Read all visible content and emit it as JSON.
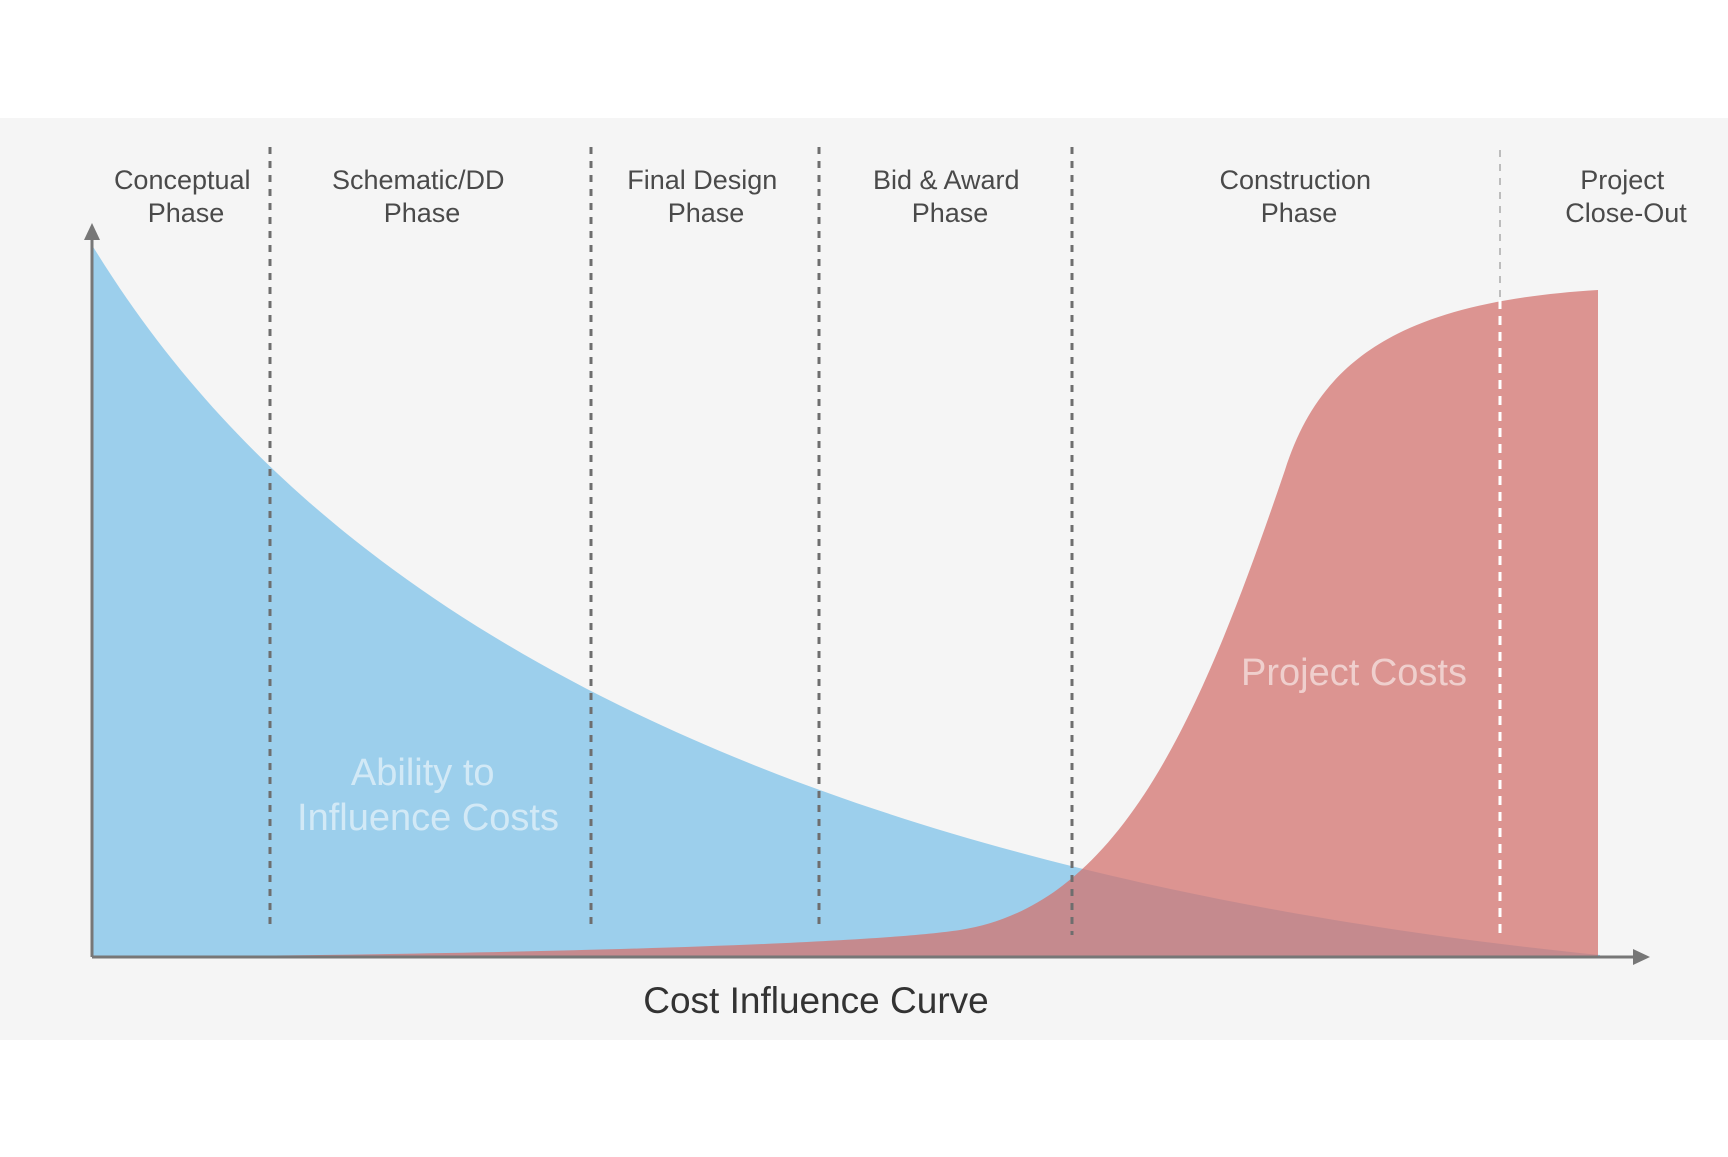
{
  "diagram": {
    "caption": "Cost Influence Curve",
    "phases": [
      {
        "line1": "Conceptual",
        "line2": "Phase"
      },
      {
        "line1": "Schematic/DD",
        "line2": "Phase"
      },
      {
        "line1": "Final Design",
        "line2": "Phase"
      },
      {
        "line1": "Bid & Award",
        "line2": "Phase"
      },
      {
        "line1": "Construction",
        "line2": "Phase"
      },
      {
        "line1": "Project",
        "line2": "Close-Out"
      }
    ],
    "areas": {
      "influence": {
        "line1": "Ability to",
        "line2": "Influence Costs"
      },
      "costs": {
        "label": "Project Costs"
      }
    },
    "colors": {
      "panel": "#f5f5f5",
      "influence_fill": "#8cc8ea",
      "costs_fill": "#d3736f",
      "divider": "#6e6e6e",
      "axis": "#777777",
      "closeout_divider": "#ffffff"
    }
  }
}
